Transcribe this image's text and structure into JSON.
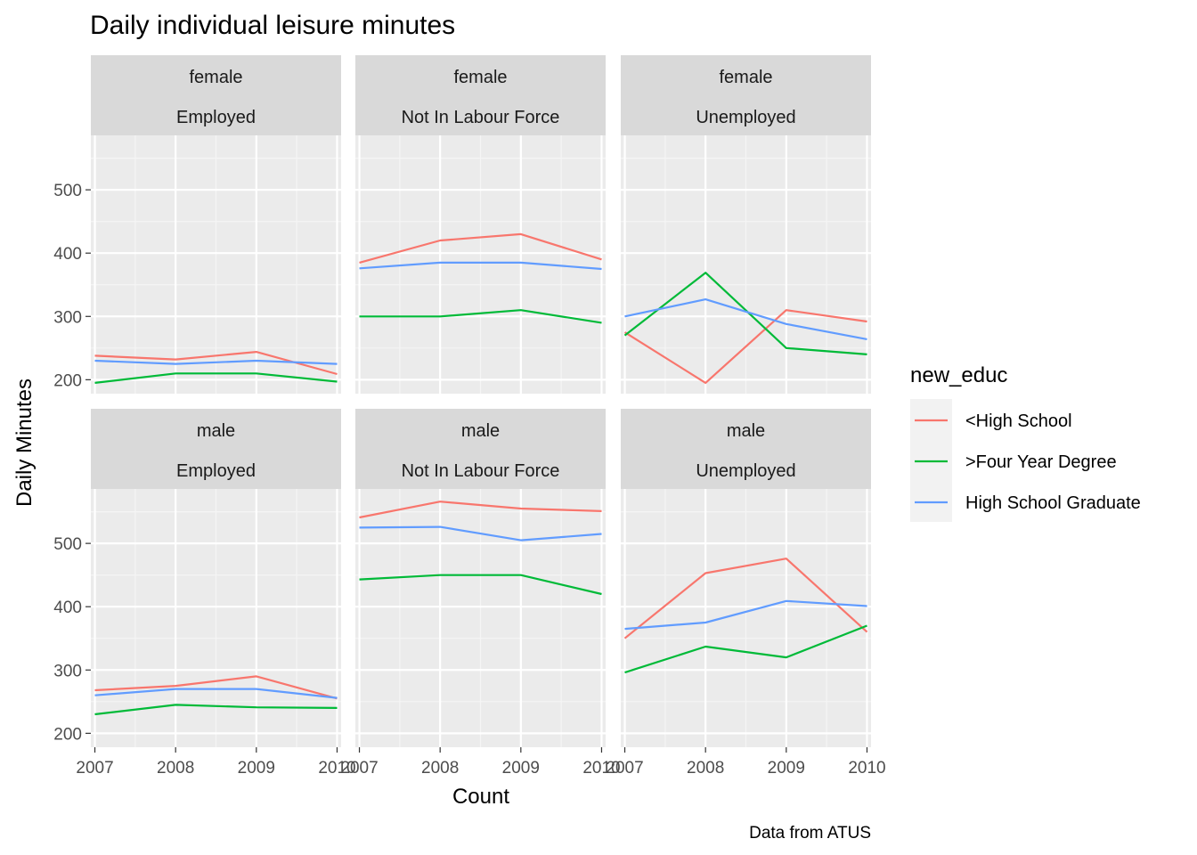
{
  "chart_data": {
    "type": "line",
    "title": "Daily individual leisure minutes",
    "xlabel": "Count",
    "ylabel": "Daily Minutes",
    "caption": "Data from ATUS",
    "x": [
      2007,
      2008,
      2009,
      2010
    ],
    "x_tick_labels": [
      "2007",
      "2008",
      "2009",
      "2010"
    ],
    "xlim": [
      2006.95,
      2010.05
    ],
    "ylim": [
      178,
      586
    ],
    "y_ticks": [
      200,
      300,
      400,
      500
    ],
    "y_tick_labels": [
      "200",
      "300",
      "400",
      "500"
    ],
    "grid": true,
    "legend": {
      "title": "new_educ",
      "placement": "right",
      "entries": [
        {
          "name": "<High School",
          "color": "#F8766D"
        },
        {
          "name": ">Four Year Degree",
          "color": "#00BA38"
        },
        {
          "name": "High School Graduate",
          "color": "#619CFF"
        }
      ]
    },
    "panels": [
      {
        "strip": [
          "female",
          "Employed"
        ],
        "series": [
          {
            "name": "<High School",
            "values": [
              238,
              232,
              244,
              209
            ]
          },
          {
            "name": ">Four Year Degree",
            "values": [
              195,
              210,
              210,
              197
            ]
          },
          {
            "name": "High School Graduate",
            "values": [
              230,
              225,
              230,
              225
            ]
          }
        ]
      },
      {
        "strip": [
          "female",
          "Not In Labour Force"
        ],
        "series": [
          {
            "name": "<High School",
            "values": [
              385,
              420,
              430,
              390
            ]
          },
          {
            "name": ">Four Year Degree",
            "values": [
              300,
              300,
              310,
              290
            ]
          },
          {
            "name": "High School Graduate",
            "values": [
              376,
              385,
              385,
              375
            ]
          }
        ]
      },
      {
        "strip": [
          "female",
          "Unemployed"
        ],
        "series": [
          {
            "name": "<High School",
            "values": [
              275,
              195,
              310,
              292
            ]
          },
          {
            "name": ">Four Year Degree",
            "values": [
              270,
              369,
              250,
              240
            ]
          },
          {
            "name": "High School Graduate",
            "values": [
              300,
              327,
              288,
              264
            ]
          }
        ]
      },
      {
        "strip": [
          "male",
          "Employed"
        ],
        "series": [
          {
            "name": "<High School",
            "values": [
              268,
              275,
              290,
              255
            ]
          },
          {
            "name": ">Four Year Degree",
            "values": [
              230,
              245,
              241,
              240
            ]
          },
          {
            "name": "High School Graduate",
            "values": [
              260,
              270,
              270,
              256
            ]
          }
        ]
      },
      {
        "strip": [
          "male",
          "Not In Labour Force"
        ],
        "series": [
          {
            "name": "<High School",
            "values": [
              541,
              566,
              555,
              551
            ]
          },
          {
            "name": ">Four Year Degree",
            "values": [
              443,
              450,
              450,
              420
            ]
          },
          {
            "name": "High School Graduate",
            "values": [
              525,
              526,
              505,
              515
            ]
          }
        ]
      },
      {
        "strip": [
          "male",
          "Unemployed"
        ],
        "series": [
          {
            "name": "<High School",
            "values": [
              350,
              453,
              476,
              360
            ]
          },
          {
            "name": ">Four Year Degree",
            "values": [
              296,
              337,
              320,
              370
            ]
          },
          {
            "name": "High School Graduate",
            "values": [
              365,
              375,
              409,
              401
            ]
          }
        ]
      }
    ]
  }
}
